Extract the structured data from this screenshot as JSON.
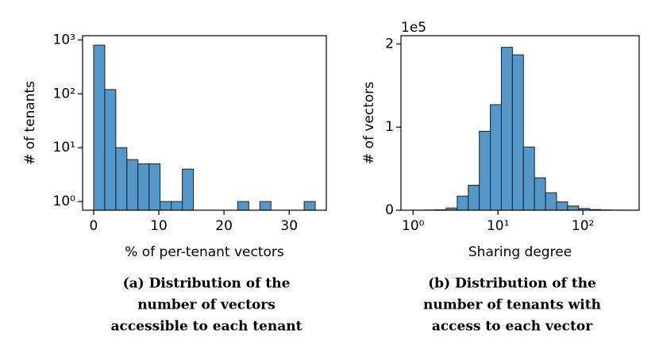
{
  "chart_data": [
    {
      "type": "histogram",
      "ylabel": "# of tenants",
      "xlabel": "% of per-tenant vectors",
      "caption": [
        "(a) Distribution of the",
        "number of vectors",
        "accessible to each tenant"
      ],
      "bins": [
        0,
        1.7,
        3.4,
        5.1,
        6.8,
        8.5,
        10.2,
        11.9,
        13.6,
        15.3,
        17,
        18.7,
        20.4,
        22.1,
        23.8,
        25.5,
        27.2,
        28.9,
        30.6,
        32.3,
        34
      ],
      "counts": [
        800,
        120,
        10,
        6,
        5,
        5,
        1,
        1,
        4,
        0,
        0,
        0,
        0,
        1,
        0,
        1,
        0,
        0,
        0,
        1
      ],
      "color": "#5697c9",
      "edgecolor": "#1f1f1f",
      "xlim": [
        -1.7,
        35.7
      ],
      "xticks": [
        0,
        10,
        20,
        30
      ],
      "ylim": [
        0.69,
        1200
      ],
      "yscale": "log",
      "yticks": [
        {
          "value": 1,
          "label": "10⁰"
        },
        {
          "value": 10,
          "label": "10¹"
        },
        {
          "value": 100,
          "label": "10²"
        },
        {
          "value": 1000,
          "label": "10³"
        }
      ]
    },
    {
      "type": "histogram",
      "ylabel": "# of vectors",
      "xlabel": "Sharing degree",
      "y_offset_text": "1e5",
      "caption": [
        "(b) Distribution of the",
        "number of tenants with",
        "access to each vector"
      ],
      "bins": [
        1,
        1.349,
        1.82,
        2.455,
        3.311,
        4.467,
        6.026,
        8.128,
        10.96,
        14.79,
        19.95,
        26.92,
        36.31,
        48.98,
        66.07,
        89.13,
        120.2,
        162.2,
        218.8,
        295.1,
        398.1
      ],
      "counts": [
        50,
        200,
        500,
        2700,
        17000,
        30000,
        95000,
        127000,
        196000,
        187000,
        76000,
        39000,
        21000,
        10000,
        5000,
        2000,
        800,
        300,
        100,
        50
      ],
      "color": "#5697c9",
      "edgecolor": "#1f1f1f",
      "xlim": [
        0.72,
        460
      ],
      "xscale": "log",
      "xticks": [
        {
          "value": 1,
          "label": "10⁰"
        },
        {
          "value": 10,
          "label": "10¹"
        },
        {
          "value": 100,
          "label": "10²"
        }
      ],
      "ylim": [
        0,
        210000
      ],
      "yticks": [
        {
          "value": 0,
          "label": "0"
        },
        {
          "value": 100000,
          "label": "1"
        },
        {
          "value": 200000,
          "label": "2"
        }
      ]
    }
  ]
}
